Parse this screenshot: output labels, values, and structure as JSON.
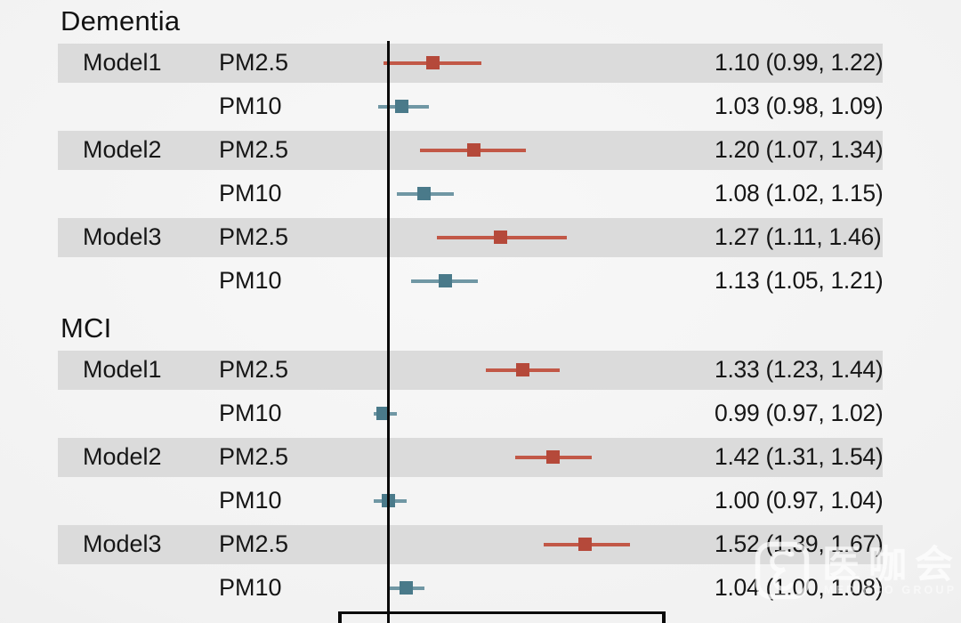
{
  "chart_data": {
    "type": "forest",
    "x_scale": "log",
    "reference_value": 1.0,
    "xlim": [
      0.9,
      1.8
    ],
    "grid": false,
    "series": [
      {
        "name": "PM2.5",
        "marker_color": "#b5493a",
        "line_color": "#c25847"
      },
      {
        "name": "PM10",
        "marker_color": "#4a7a8a",
        "line_color": "#7097a4"
      }
    ],
    "stripe_color": "#dbdbdb",
    "axis_color": "#0a0a0a",
    "text_color": "#1a1a1a",
    "groups": [
      {
        "label": "Dementia",
        "rows": [
          {
            "model": "Model1",
            "pollutant": "PM2.5",
            "estimate": 1.1,
            "ci_low": 0.99,
            "ci_high": 1.22,
            "display": "1.10 (0.99, 1.22)"
          },
          {
            "model": "",
            "pollutant": "PM10",
            "estimate": 1.03,
            "ci_low": 0.98,
            "ci_high": 1.09,
            "display": "1.03 (0.98, 1.09)"
          },
          {
            "model": "Model2",
            "pollutant": "PM2.5",
            "estimate": 1.2,
            "ci_low": 1.07,
            "ci_high": 1.34,
            "display": "1.20 (1.07, 1.34)"
          },
          {
            "model": "",
            "pollutant": "PM10",
            "estimate": 1.08,
            "ci_low": 1.02,
            "ci_high": 1.15,
            "display": "1.08 (1.02, 1.15)"
          },
          {
            "model": "Model3",
            "pollutant": "PM2.5",
            "estimate": 1.27,
            "ci_low": 1.11,
            "ci_high": 1.46,
            "display": "1.27 (1.11, 1.46)"
          },
          {
            "model": "",
            "pollutant": "PM10",
            "estimate": 1.13,
            "ci_low": 1.05,
            "ci_high": 1.21,
            "display": "1.13 (1.05, 1.21)"
          }
        ]
      },
      {
        "label": "MCI",
        "rows": [
          {
            "model": "Model1",
            "pollutant": "PM2.5",
            "estimate": 1.33,
            "ci_low": 1.23,
            "ci_high": 1.44,
            "display": "1.33 (1.23, 1.44)"
          },
          {
            "model": "",
            "pollutant": "PM10",
            "estimate": 0.99,
            "ci_low": 0.97,
            "ci_high": 1.02,
            "display": "0.99 (0.97, 1.02)"
          },
          {
            "model": "Model2",
            "pollutant": "PM2.5",
            "estimate": 1.42,
            "ci_low": 1.31,
            "ci_high": 1.54,
            "display": "1.42 (1.31, 1.54)"
          },
          {
            "model": "",
            "pollutant": "PM10",
            "estimate": 1.0,
            "ci_low": 0.97,
            "ci_high": 1.04,
            "display": "1.00 (0.97, 1.04)"
          },
          {
            "model": "Model3",
            "pollutant": "PM2.5",
            "estimate": 1.52,
            "ci_low": 1.39,
            "ci_high": 1.67,
            "display": "1.52 (1.39, 1.67)"
          },
          {
            "model": "",
            "pollutant": "PM10",
            "estimate": 1.04,
            "ci_low": 1.0,
            "ci_high": 1.08,
            "display": "1.04 (1.00, 1.08)"
          }
        ]
      }
    ]
  },
  "watermark": {
    "logo": "mediego-logo",
    "title": "医咖会",
    "subtitle": "MEDIECO GROUP"
  }
}
